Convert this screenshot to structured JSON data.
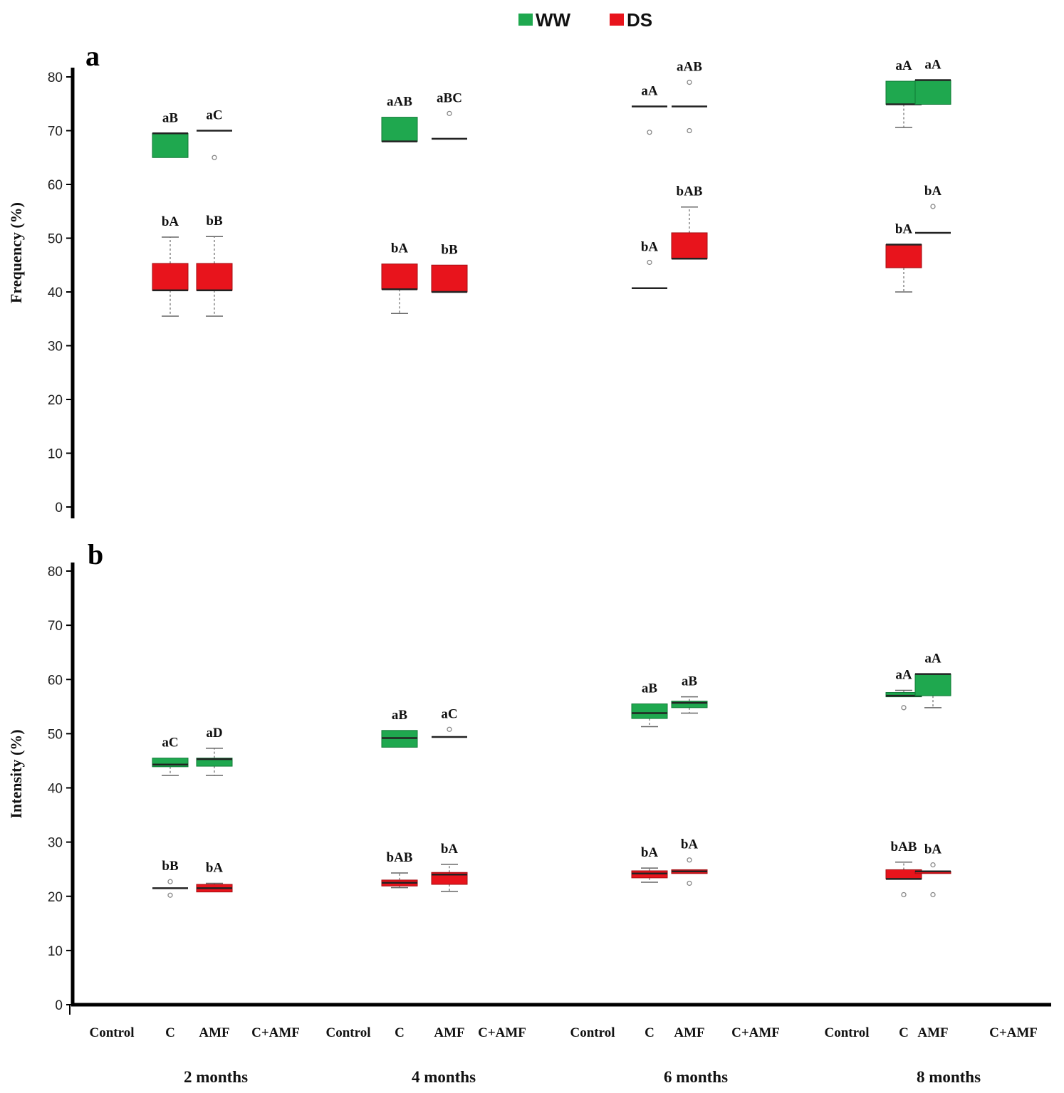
{
  "colors": {
    "WW": "#1fa84f",
    "DS": "#e8141c",
    "WW_edge": "#0f7a36",
    "DS_edge": "#a50d12"
  },
  "legend": [
    {
      "key": "WW",
      "label": "WW"
    },
    {
      "key": "DS",
      "label": "DS"
    }
  ],
  "chart_data": [
    {
      "type": "box",
      "panel_label": "a",
      "ylabel": "Frequency (%)",
      "ylim": [
        0,
        80
      ],
      "yticks": [
        0,
        10,
        20,
        30,
        40,
        50,
        60,
        70,
        80
      ],
      "boxes": [
        {
          "group": 0,
          "slot": 1,
          "series": "WW",
          "min": 65,
          "q1": 65,
          "median": 69.5,
          "q3": 69.5,
          "max": 69.5,
          "outliers": [],
          "label": "aB"
        },
        {
          "group": 0,
          "slot": 2,
          "series": "WW",
          "min": 70,
          "q1": 70,
          "median": 70,
          "q3": 70,
          "max": 70,
          "outliers": [
            65
          ],
          "label": "aC"
        },
        {
          "group": 0,
          "slot": 1,
          "series": "DS",
          "min": 35.5,
          "q1": 40.3,
          "median": 40.3,
          "q3": 45.3,
          "max": 50.2,
          "outliers": [],
          "label": "bA"
        },
        {
          "group": 0,
          "slot": 2,
          "series": "DS",
          "min": 35.5,
          "q1": 40.3,
          "median": 40.3,
          "q3": 45.3,
          "max": 50.3,
          "outliers": [],
          "label": "bB"
        },
        {
          "group": 1,
          "slot": 1,
          "series": "WW",
          "min": 68,
          "q1": 68,
          "median": 68,
          "q3": 72.5,
          "max": 72.5,
          "outliers": [],
          "label": "aAB"
        },
        {
          "group": 1,
          "slot": 2,
          "series": "WW",
          "min": 68.5,
          "q1": 68.5,
          "median": 68.5,
          "q3": 68.5,
          "max": 68.5,
          "outliers": [
            73.2
          ],
          "label": "aBC"
        },
        {
          "group": 1,
          "slot": 1,
          "series": "DS",
          "min": 36,
          "q1": 40.5,
          "median": 40.5,
          "q3": 45.2,
          "max": 45.2,
          "outliers": [],
          "label": "bA"
        },
        {
          "group": 1,
          "slot": 2,
          "series": "DS",
          "min": 40,
          "q1": 40,
          "median": 40,
          "q3": 45,
          "max": 45,
          "outliers": [],
          "label": "bB"
        },
        {
          "group": 2,
          "slot": 1,
          "series": "WW",
          "min": 74.5,
          "q1": 74.5,
          "median": 74.5,
          "q3": 74.5,
          "max": 74.5,
          "outliers": [
            69.7
          ],
          "label": "aA"
        },
        {
          "group": 2,
          "slot": 2,
          "series": "WW",
          "min": 74.5,
          "q1": 74.5,
          "median": 74.5,
          "q3": 74.5,
          "max": 74.5,
          "outliers": [
            79,
            70
          ],
          "label": "aAB"
        },
        {
          "group": 2,
          "slot": 1,
          "series": "DS",
          "min": 40.7,
          "q1": 40.7,
          "median": 40.7,
          "q3": 40.7,
          "max": 40.7,
          "outliers": [
            45.5
          ],
          "label": "bA"
        },
        {
          "group": 2,
          "slot": 2,
          "series": "DS",
          "min": 46.2,
          "q1": 46.2,
          "median": 46.2,
          "q3": 51,
          "max": 55.8,
          "outliers": [],
          "label": "bAB"
        },
        {
          "group": 3,
          "slot": 1,
          "series": "WW",
          "min": 70.6,
          "q1": 74.9,
          "median": 74.9,
          "q3": 79.2,
          "max": 79.2,
          "outliers": [],
          "label": "aA"
        },
        {
          "group": 3,
          "slot": 2,
          "series": "WW",
          "min": 74.9,
          "q1": 74.9,
          "median": 79.4,
          "q3": 79.4,
          "max": 79.4,
          "outliers": [],
          "label": "aA"
        },
        {
          "group": 3,
          "slot": 1,
          "series": "DS",
          "min": 40,
          "q1": 44.5,
          "median": 48.8,
          "q3": 48.8,
          "max": 48.8,
          "outliers": [],
          "label": "bA"
        },
        {
          "group": 3,
          "slot": 2,
          "series": "DS",
          "min": 51,
          "q1": 51,
          "median": 51,
          "q3": 51,
          "max": 51,
          "outliers": [
            55.9
          ],
          "label": "bA"
        }
      ]
    },
    {
      "type": "box",
      "panel_label": "b",
      "ylabel": "Intensity (%)",
      "ylim": [
        0,
        80
      ],
      "yticks": [
        0,
        10,
        20,
        30,
        40,
        50,
        60,
        70,
        80
      ],
      "boxes": [
        {
          "group": 0,
          "slot": 1,
          "series": "WW",
          "min": 42.3,
          "q1": 43.9,
          "median": 44.3,
          "q3": 45.5,
          "max": 45.5,
          "outliers": [],
          "label": "aC"
        },
        {
          "group": 0,
          "slot": 2,
          "series": "WW",
          "min": 42.3,
          "q1": 44,
          "median": 45.3,
          "q3": 45.5,
          "max": 47.3,
          "outliers": [],
          "label": "aD"
        },
        {
          "group": 0,
          "slot": 1,
          "series": "DS",
          "min": 21.5,
          "q1": 21.5,
          "median": 21.5,
          "q3": 21.5,
          "max": 21.5,
          "outliers": [
            22.7,
            20.2
          ],
          "label": "bB"
        },
        {
          "group": 0,
          "slot": 2,
          "series": "DS",
          "min": 20.8,
          "q1": 20.8,
          "median": 21.5,
          "q3": 22.2,
          "max": 22.4,
          "outliers": [],
          "label": "bA"
        },
        {
          "group": 1,
          "slot": 1,
          "series": "WW",
          "min": 47.5,
          "q1": 47.5,
          "median": 49.2,
          "q3": 50.6,
          "max": 50.6,
          "outliers": [],
          "label": "aB"
        },
        {
          "group": 1,
          "slot": 2,
          "series": "WW",
          "min": 49.4,
          "q1": 49.4,
          "median": 49.4,
          "q3": 49.4,
          "max": 49.4,
          "outliers": [
            50.8
          ],
          "label": "aC"
        },
        {
          "group": 1,
          "slot": 1,
          "series": "DS",
          "min": 21.6,
          "q1": 21.9,
          "median": 22.5,
          "q3": 23,
          "max": 24.3,
          "outliers": [],
          "label": "bAB"
        },
        {
          "group": 1,
          "slot": 2,
          "series": "DS",
          "min": 20.9,
          "q1": 22.2,
          "median": 24,
          "q3": 24.4,
          "max": 25.9,
          "outliers": [],
          "label": "bA"
        },
        {
          "group": 2,
          "slot": 1,
          "series": "WW",
          "min": 51.3,
          "q1": 52.8,
          "median": 53.8,
          "q3": 55.5,
          "max": 55.5,
          "outliers": [],
          "label": "aB"
        },
        {
          "group": 2,
          "slot": 2,
          "series": "WW",
          "min": 53.8,
          "q1": 54.8,
          "median": 55.7,
          "q3": 56,
          "max": 56.8,
          "outliers": [],
          "label": "aB"
        },
        {
          "group": 2,
          "slot": 1,
          "series": "DS",
          "min": 22.6,
          "q1": 23.4,
          "median": 24.2,
          "q3": 24.7,
          "max": 25.2,
          "outliers": [],
          "label": "bA"
        },
        {
          "group": 2,
          "slot": 2,
          "series": "DS",
          "min": 24.2,
          "q1": 24.2,
          "median": 24.6,
          "q3": 24.9,
          "max": 24.9,
          "outliers": [
            26.7,
            22.4
          ],
          "label": "bA"
        },
        {
          "group": 3,
          "slot": 1,
          "series": "WW",
          "min": 56.8,
          "q1": 56.8,
          "median": 57,
          "q3": 57.6,
          "max": 58,
          "outliers": [
            54.8
          ],
          "label": "aA"
        },
        {
          "group": 3,
          "slot": 2,
          "series": "WW",
          "min": 54.8,
          "q1": 57,
          "median": 61,
          "q3": 61,
          "max": 61,
          "outliers": [],
          "label": "aA"
        },
        {
          "group": 3,
          "slot": 1,
          "series": "DS",
          "min": 23.2,
          "q1": 23.2,
          "median": 23.2,
          "q3": 24.9,
          "max": 26.3,
          "outliers": [
            20.3
          ],
          "label": "bAB"
        },
        {
          "group": 3,
          "slot": 2,
          "series": "DS",
          "min": 24.2,
          "q1": 24.2,
          "median": 24.6,
          "q3": 24.6,
          "max": 24.6,
          "outliers": [
            25.8,
            20.3
          ],
          "label": "bA"
        }
      ]
    }
  ],
  "x_axis": {
    "categories": [
      "Control",
      "C",
      "AMF",
      "C+AMF"
    ],
    "groups": [
      "2 months",
      "4 months",
      "6 months",
      "8 months"
    ]
  }
}
